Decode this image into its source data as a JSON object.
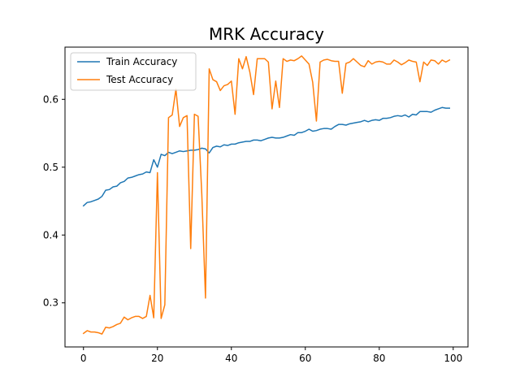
{
  "chart_data": {
    "type": "line",
    "title": "MRK Accuracy",
    "xlabel": "",
    "ylabel": "",
    "xlim": [
      -5,
      104
    ],
    "ylim": [
      0.235,
      0.677
    ],
    "xticks": [
      0,
      20,
      40,
      60,
      80,
      100
    ],
    "xtick_labels": [
      "0",
      "20",
      "40",
      "60",
      "80",
      "100"
    ],
    "yticks": [
      0.3,
      0.4,
      0.5,
      0.6
    ],
    "ytick_labels": [
      "0.3",
      "0.4",
      "0.5",
      "0.6"
    ],
    "grid": false,
    "legend_position": "top-left",
    "x": [
      0,
      1,
      2,
      3,
      4,
      5,
      6,
      7,
      8,
      9,
      10,
      11,
      12,
      13,
      14,
      15,
      16,
      17,
      18,
      19,
      20,
      21,
      22,
      23,
      24,
      25,
      26,
      27,
      28,
      29,
      30,
      31,
      32,
      33,
      34,
      35,
      36,
      37,
      38,
      39,
      40,
      41,
      42,
      43,
      44,
      45,
      46,
      47,
      48,
      49,
      50,
      51,
      52,
      53,
      54,
      55,
      56,
      57,
      58,
      59,
      60,
      61,
      62,
      63,
      64,
      65,
      66,
      67,
      68,
      69,
      70,
      71,
      72,
      73,
      74,
      75,
      76,
      77,
      78,
      79,
      80,
      81,
      82,
      83,
      84,
      85,
      86,
      87,
      88,
      89,
      90,
      91,
      92,
      93,
      94,
      95,
      96,
      97,
      98,
      99
    ],
    "series": [
      {
        "name": "Train Accuracy",
        "color": "#1f77b4",
        "values": [
          0.443,
          0.448,
          0.449,
          0.451,
          0.453,
          0.457,
          0.466,
          0.467,
          0.471,
          0.472,
          0.477,
          0.479,
          0.484,
          0.485,
          0.487,
          0.489,
          0.49,
          0.493,
          0.492,
          0.511,
          0.5,
          0.519,
          0.517,
          0.522,
          0.52,
          0.522,
          0.524,
          0.523,
          0.524,
          0.525,
          0.525,
          0.526,
          0.528,
          0.527,
          0.521,
          0.529,
          0.531,
          0.53,
          0.533,
          0.532,
          0.534,
          0.534,
          0.536,
          0.537,
          0.538,
          0.538,
          0.54,
          0.54,
          0.539,
          0.541,
          0.543,
          0.544,
          0.543,
          0.543,
          0.544,
          0.546,
          0.548,
          0.547,
          0.551,
          0.551,
          0.553,
          0.556,
          0.553,
          0.554,
          0.556,
          0.557,
          0.557,
          0.556,
          0.56,
          0.563,
          0.563,
          0.562,
          0.564,
          0.565,
          0.566,
          0.567,
          0.569,
          0.567,
          0.569,
          0.57,
          0.569,
          0.572,
          0.572,
          0.573,
          0.575,
          0.576,
          0.575,
          0.577,
          0.574,
          0.578,
          0.577,
          0.582,
          0.582,
          0.582,
          0.581,
          0.584,
          0.586,
          0.588,
          0.587,
          0.587
        ]
      },
      {
        "name": "Test Accuracy",
        "color": "#ff7f0e",
        "values": [
          0.255,
          0.259,
          0.257,
          0.257,
          0.256,
          0.254,
          0.264,
          0.263,
          0.265,
          0.268,
          0.27,
          0.279,
          0.275,
          0.278,
          0.28,
          0.28,
          0.277,
          0.28,
          0.311,
          0.278,
          0.492,
          0.277,
          0.297,
          0.573,
          0.577,
          0.615,
          0.56,
          0.573,
          0.576,
          0.38,
          0.578,
          0.575,
          0.46,
          0.307,
          0.645,
          0.629,
          0.626,
          0.613,
          0.62,
          0.622,
          0.627,
          0.578,
          0.66,
          0.645,
          0.663,
          0.64,
          0.607,
          0.66,
          0.66,
          0.66,
          0.655,
          0.586,
          0.627,
          0.588,
          0.66,
          0.656,
          0.658,
          0.657,
          0.66,
          0.664,
          0.658,
          0.652,
          0.625,
          0.568,
          0.655,
          0.658,
          0.659,
          0.657,
          0.656,
          0.656,
          0.609,
          0.653,
          0.655,
          0.66,
          0.655,
          0.65,
          0.648,
          0.657,
          0.652,
          0.655,
          0.656,
          0.655,
          0.652,
          0.652,
          0.658,
          0.655,
          0.651,
          0.654,
          0.658,
          0.656,
          0.655,
          0.626,
          0.655,
          0.65,
          0.658,
          0.657,
          0.652,
          0.658,
          0.655,
          0.658
        ]
      }
    ]
  }
}
